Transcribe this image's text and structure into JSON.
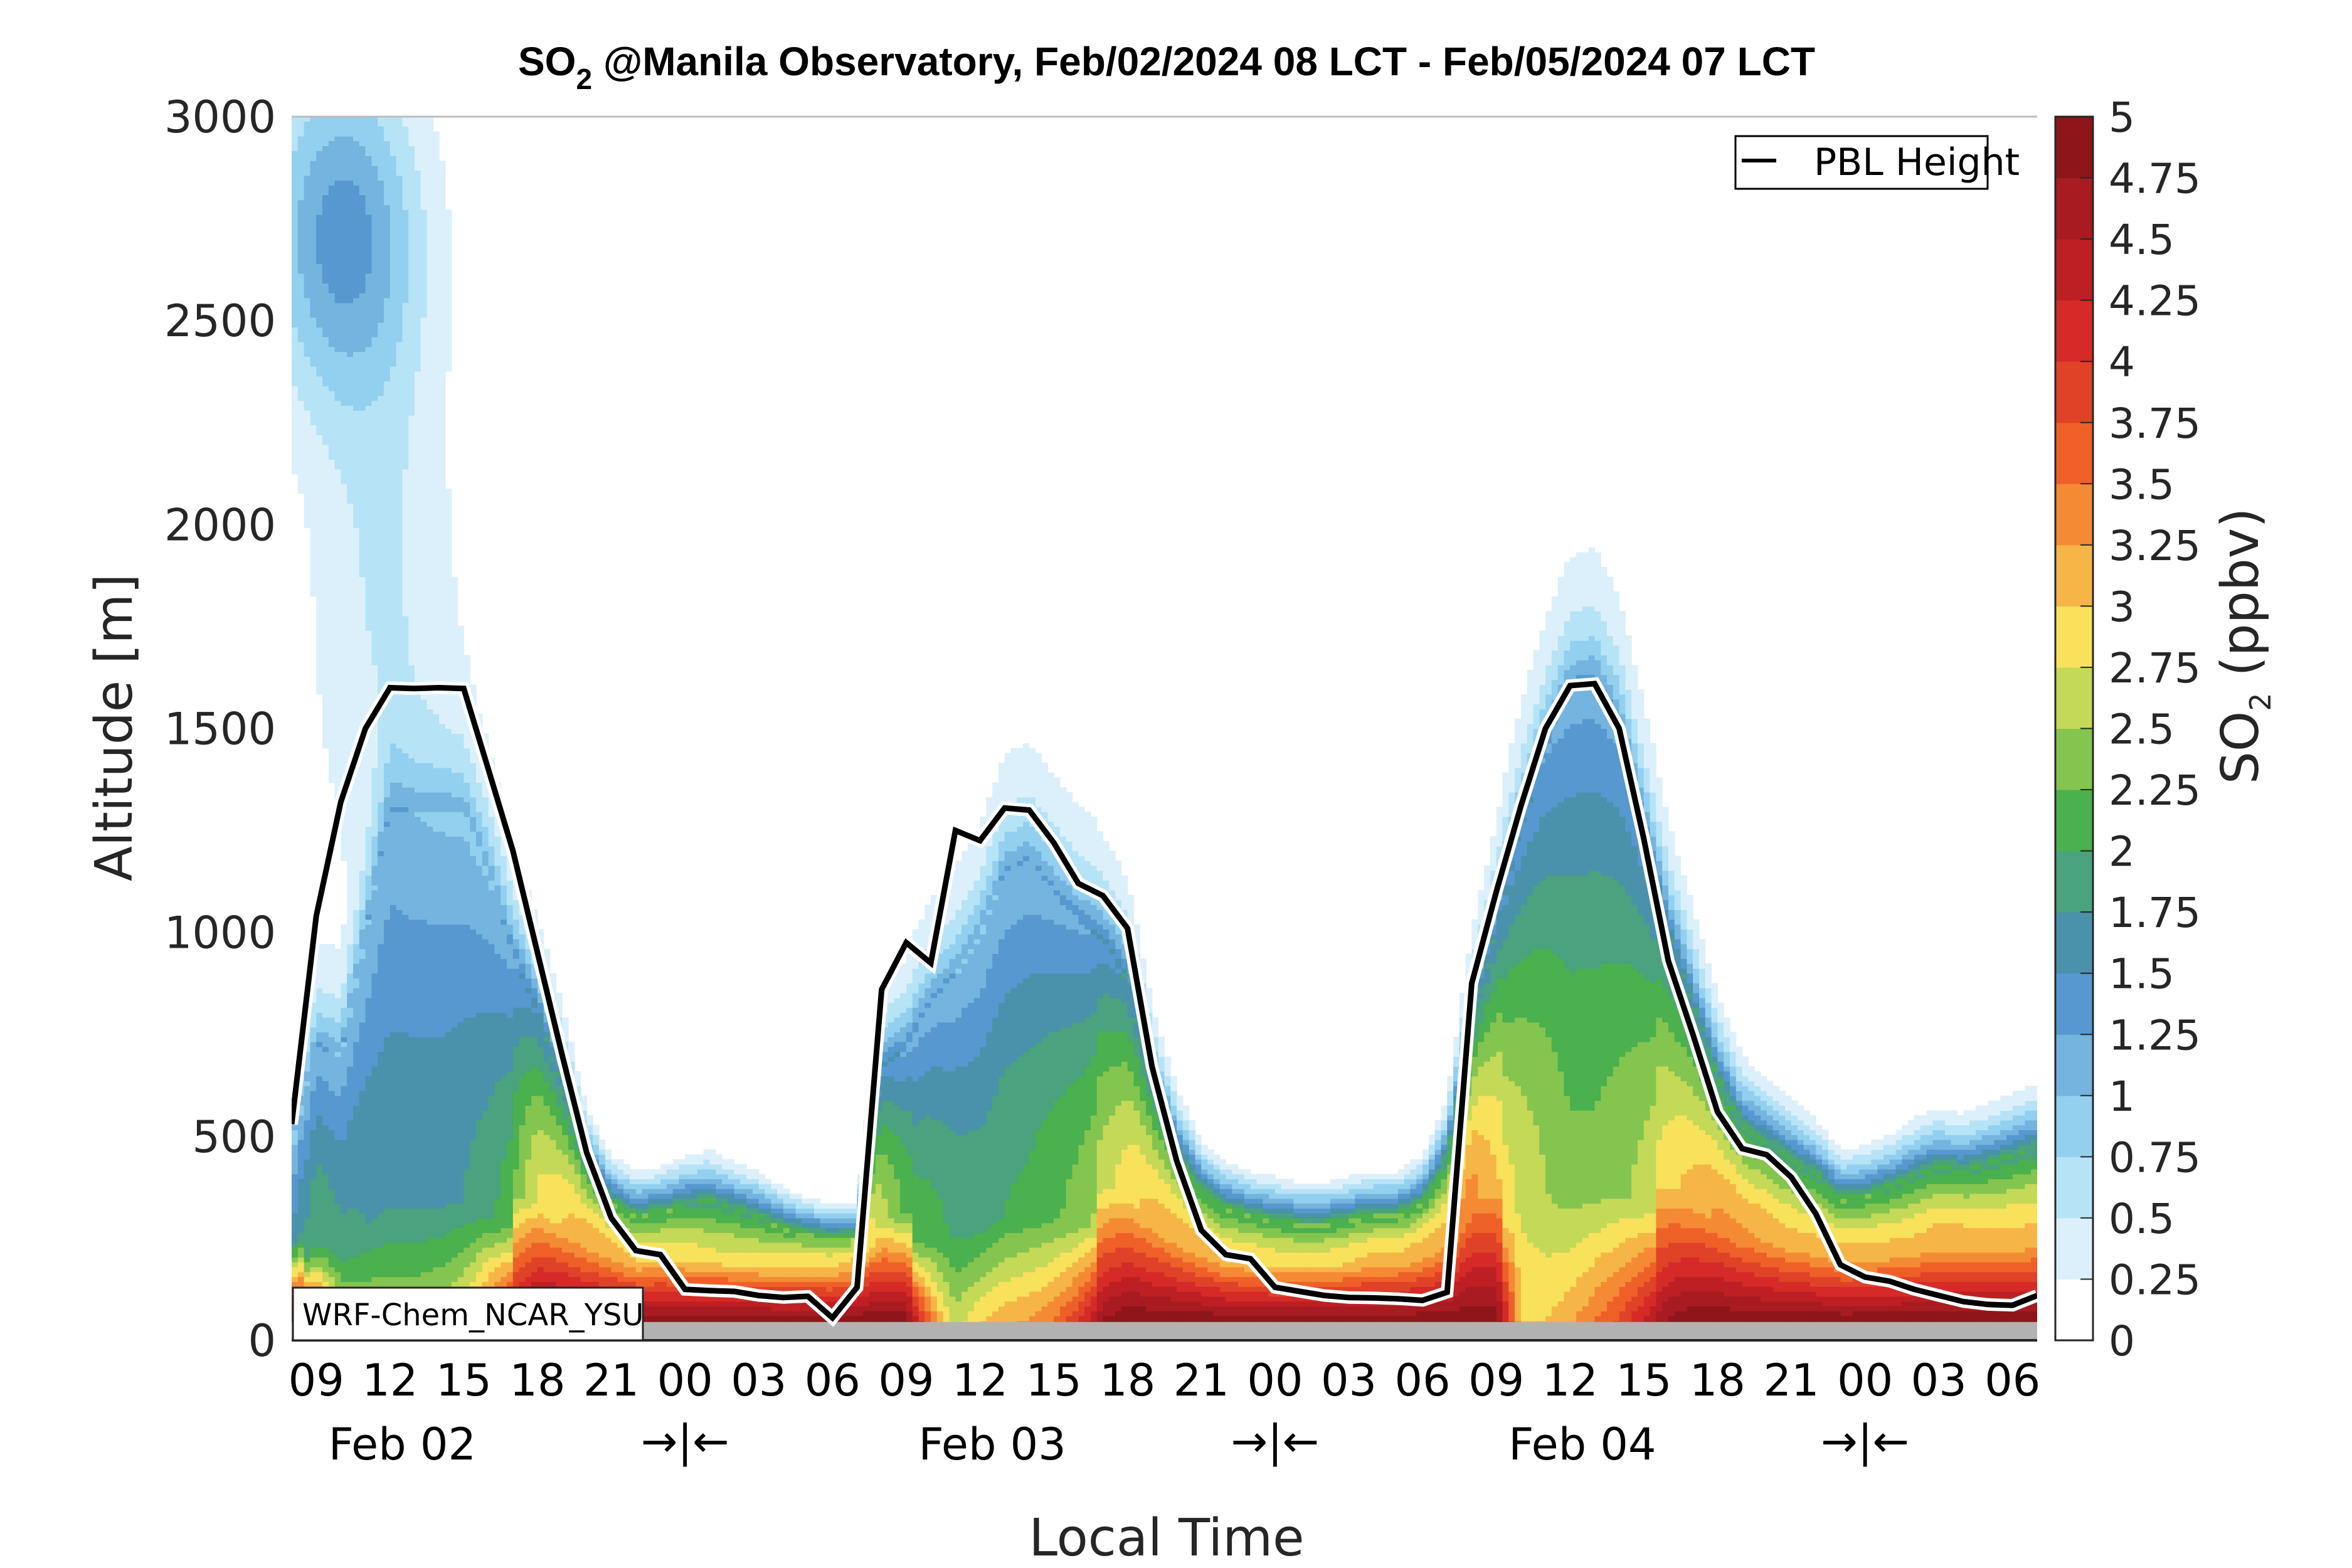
{
  "chart_data": {
    "type": "heatmap",
    "subtype": "filled-contour time-height cross-section",
    "title": {
      "prefix": "SO",
      "subscript": "2",
      "suffix": " @Manila Observatory, Feb/02/2024 08 LCT - Feb/05/2024 07 LCT"
    },
    "xlabel": "Local Time",
    "ylabel": "Altitude [m]",
    "ylim": [
      0,
      3000
    ],
    "yticks": [
      0,
      500,
      1000,
      1500,
      2000,
      2500,
      3000
    ],
    "ytick_labels": [
      "0",
      "500",
      "1000",
      "1500",
      "2000",
      "2500",
      "3000"
    ],
    "x_range_hours": [
      0,
      71
    ],
    "x_start_label": "Feb/02/2024 08 LCT",
    "xtick_labels": [
      "09",
      "12",
      "15",
      "18",
      "21",
      "00",
      "03",
      "06",
      "09",
      "12",
      "15",
      "18",
      "21",
      "00",
      "03",
      "06",
      "09",
      "12",
      "15",
      "18",
      "21",
      "00",
      "03",
      "06"
    ],
    "xtick_hours": [
      1,
      4,
      7,
      10,
      13,
      16,
      19,
      22,
      25,
      28,
      31,
      34,
      37,
      40,
      43,
      46,
      49,
      52,
      55,
      58,
      61,
      64,
      67,
      70
    ],
    "date_labels": [
      {
        "text": "Feb 02",
        "hour": 4.5
      },
      {
        "text": "Feb 03",
        "hour": 28.5
      },
      {
        "text": "Feb 04",
        "hour": 52.5
      }
    ],
    "day_separators": [
      {
        "text": "→|←",
        "hour": 16
      },
      {
        "text": "→|←",
        "hour": 40
      },
      {
        "text": "→|←",
        "hour": 64
      }
    ],
    "ground_level_m": 45,
    "colorbar": {
      "label_prefix": "SO",
      "label_subscript": "2",
      "label_suffix": " (ppbv)",
      "levels": [
        0,
        0.25,
        0.5,
        0.75,
        1,
        1.25,
        1.5,
        1.75,
        2,
        2.25,
        2.5,
        2.75,
        3,
        3.25,
        3.5,
        3.75,
        4,
        4.25,
        4.5,
        4.75,
        5
      ],
      "level_labels": [
        "0",
        "0.25",
        "0.5",
        "0.75",
        "1",
        "1.25",
        "1.5",
        "1.75",
        "2",
        "2.25",
        "2.5",
        "2.75",
        "3",
        "3.25",
        "3.5",
        "3.75",
        "4",
        "4.25",
        "4.5",
        "4.75",
        "5"
      ],
      "colors": [
        "#ffffff",
        "#dcf0fb",
        "#b7e3f7",
        "#93d0ef",
        "#74b4de",
        "#5698cf",
        "#4a91ab",
        "#4aa27e",
        "#4bb04e",
        "#84c54f",
        "#c4d957",
        "#f8e15b",
        "#f6b547",
        "#f58a34",
        "#ef6029",
        "#e04228",
        "#d52a27",
        "#bd1f25",
        "#a71b21",
        "#8e1519"
      ]
    },
    "legend": {
      "entries": [
        {
          "label": "PBL Height",
          "style": "black line"
        }
      ],
      "placement": "top-right"
    },
    "annotation": "WRF-Chem_NCAR_YSU",
    "pbl_height_m": [
      530,
      1040,
      1320,
      1500,
      1600,
      1598,
      1600,
      1598,
      1400,
      1200,
      950,
      700,
      460,
      300,
      220,
      210,
      125,
      122,
      120,
      110,
      105,
      108,
      55,
      130,
      860,
      975,
      925,
      1250,
      1225,
      1305,
      1300,
      1220,
      1120,
      1090,
      1010,
      670,
      440,
      270,
      210,
      200,
      130,
      120,
      110,
      105,
      104,
      102,
      98,
      118,
      875,
      1100,
      1310,
      1500,
      1605,
      1610,
      1500,
      1230,
      930,
      750,
      560,
      470,
      455,
      400,
      310,
      185,
      155,
      145,
      125,
      110,
      95,
      88,
      86,
      110
    ],
    "surface_so2_ppbv": [
      4.9,
      4.2,
      2.8,
      2.6,
      2.6,
      2.6,
      2.7,
      3.0,
      3.8,
      4.6,
      5,
      5,
      5,
      5,
      5,
      5,
      5,
      5,
      5,
      5,
      5,
      5,
      5,
      5,
      5,
      5,
      3.5,
      2.6,
      3.0,
      3.2,
      3.3,
      3.5,
      4.0,
      4.8,
      5,
      5,
      5,
      5,
      5,
      5,
      5,
      5,
      5,
      5,
      5,
      5,
      5,
      5,
      5,
      5,
      3.0,
      3.0,
      3.2,
      3.5,
      3.8,
      4.3,
      4.8,
      5,
      5,
      5,
      5,
      5,
      5,
      5,
      5,
      5,
      5,
      5,
      5,
      5,
      5,
      5
    ],
    "mixed_layer_so2_ppbv": [
      1.5,
      2.0,
      1.8,
      1.75,
      1.7,
      1.7,
      1.7,
      1.75,
      1.9,
      2.2,
      2.8,
      3.0,
      3.2,
      3.2,
      3.0,
      3.0,
      2.9,
      2.8,
      2.8,
      2.8,
      2.9,
      3.0,
      3.0,
      3.2,
      2.6,
      2.2,
      2.1,
      1.95,
      1.9,
      2.0,
      2.05,
      2.2,
      2.35,
      2.6,
      2.9,
      3.1,
      3.2,
      3.2,
      3.0,
      3.0,
      2.9,
      2.9,
      2.9,
      3.0,
      3.1,
      3.1,
      3.2,
      3.2,
      3.4,
      3.0,
      2.7,
      2.5,
      2.3,
      2.3,
      2.4,
      2.6,
      2.9,
      3.1,
      3.3,
      3.3,
      3.2,
      3.1,
      3.1,
      3.1,
      3.1,
      3.1,
      3.1,
      3.2,
      3.2,
      3.1,
      3.1,
      3.1
    ],
    "mixed_layer_top_m": [
      480,
      720,
      700,
      1000,
      1300,
      1290,
      1300,
      1300,
      1150,
      950,
      800,
      620,
      420,
      330,
      300,
      310,
      330,
      340,
      320,
      300,
      270,
      250,
      240,
      240,
      660,
      720,
      830,
      900,
      1000,
      1150,
      1180,
      1100,
      1030,
      980,
      880,
      620,
      460,
      360,
      320,
      300,
      290,
      280,
      280,
      290,
      300,
      300,
      330,
      440,
      760,
      1000,
      1250,
      1450,
      1600,
      1620,
      1500,
      1250,
      1000,
      820,
      640,
      520,
      480,
      440,
      400,
      340,
      350,
      370,
      400,
      420,
      410,
      430,
      450,
      470
    ],
    "upper_plume": {
      "description": "elevated SO2 layer above 2000 m, Feb 02 08-18 LCT",
      "peak_ppbv": 1.3,
      "peak_hour": 2,
      "peak_altitude_m": 2720
    }
  }
}
